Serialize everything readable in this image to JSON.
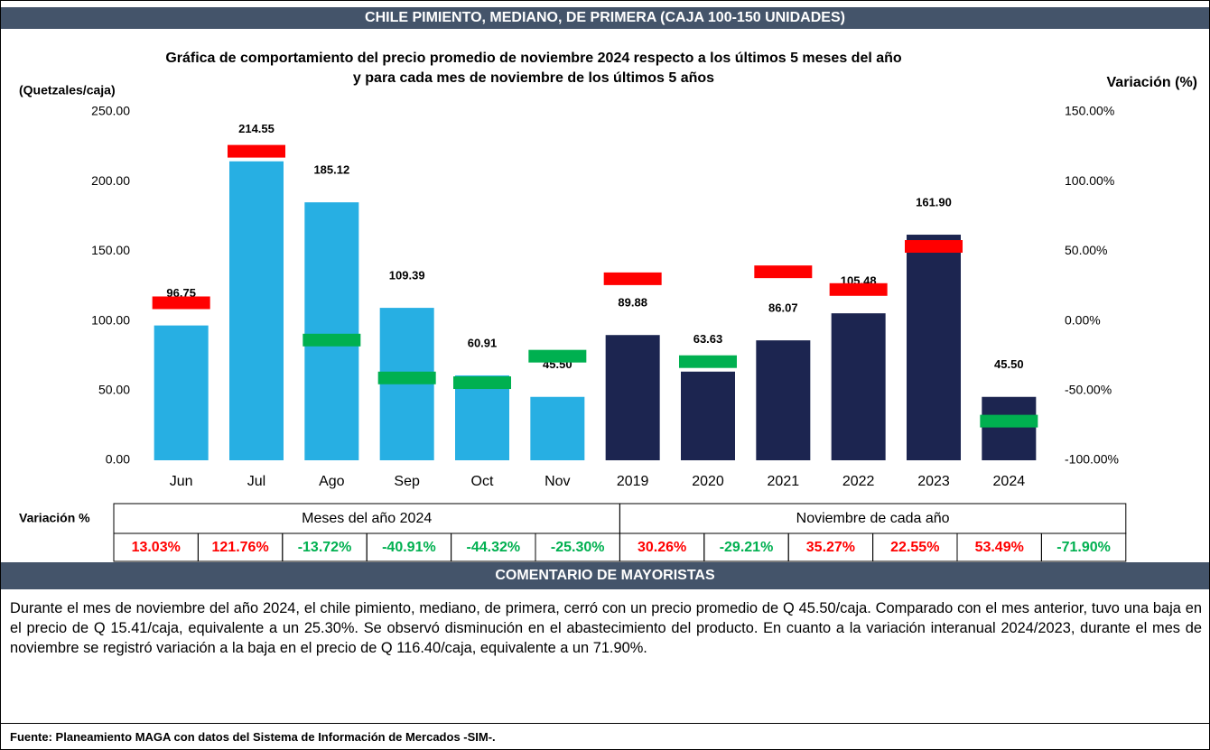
{
  "header": {
    "title": "CHILE PIMIENTO, MEDIANO, DE PRIMERA (CAJA 100-150 UNIDADES)"
  },
  "chart_data": {
    "type": "bar",
    "title": [
      "Gráfica de comportamiento del precio promedio de noviembre 2024 respecto a los últimos 5 meses del año",
      "y para cada mes de noviembre de los últimos 5 años"
    ],
    "ylabel": "(Quetzales/caja)",
    "y2label": "Variación (%)",
    "categories": [
      "Jun",
      "Jul",
      "Ago",
      "Sep",
      "Oct",
      "Nov",
      "2019",
      "2020",
      "2021",
      "2022",
      "2023",
      "2024"
    ],
    "values": [
      96.75,
      214.55,
      185.12,
      109.39,
      60.91,
      45.5,
      89.88,
      63.63,
      86.07,
      105.48,
      161.9,
      45.5
    ],
    "value_labels": [
      "96.75",
      "214.55",
      "185.12",
      "109.39",
      "60.91",
      "45.50",
      "89.88",
      "63.63",
      "86.07",
      "105.48",
      "161.90",
      "45.50"
    ],
    "colors": [
      "#27afe3",
      "#27afe3",
      "#27afe3",
      "#27afe3",
      "#27afe3",
      "#27afe3",
      "#1c2550",
      "#1c2550",
      "#1c2550",
      "#1c2550",
      "#1c2550",
      "#1c2550"
    ],
    "ylim": [
      0,
      250
    ],
    "yticks": [
      {
        "value": 0,
        "label": "0.00"
      },
      {
        "value": 50,
        "label": "50.00"
      },
      {
        "value": 100,
        "label": "100.00"
      },
      {
        "value": 150,
        "label": "150.00"
      },
      {
        "value": 200,
        "label": "200.00"
      },
      {
        "value": 250,
        "label": "250.00"
      }
    ],
    "y2lim": [
      -100,
      150
    ],
    "y2ticks": [
      {
        "value": -100,
        "label": "-100.00%"
      },
      {
        "value": -50,
        "label": "-50.00%"
      },
      {
        "value": 0,
        "label": "0.00%"
      },
      {
        "value": 50,
        "label": "50.00%"
      },
      {
        "value": 100,
        "label": "100.00%"
      },
      {
        "value": 150,
        "label": "150.00%"
      }
    ],
    "variation": {
      "axis": "y2",
      "label": "Variación %",
      "groups": [
        "Meses del año  2024",
        "Noviembre de cada año"
      ],
      "values": [
        13.03,
        121.76,
        -13.72,
        -40.91,
        -44.32,
        -25.3,
        30.26,
        -29.21,
        35.27,
        22.55,
        53.49,
        -71.9
      ],
      "value_labels": [
        "13.03%",
        "121.76%",
        "-13.72%",
        "-40.91%",
        "-44.32%",
        "-25.30%",
        "30.26%",
        "-29.21%",
        "35.27%",
        "22.55%",
        "53.49%",
        "-71.90%"
      ],
      "colors": [
        "#ff0000",
        "#ff0000",
        "#00b050",
        "#00b050",
        "#00b050",
        "#00b050",
        "#ff0000",
        "#00b050",
        "#ff0000",
        "#ff0000",
        "#ff0000",
        "#00b050"
      ]
    }
  },
  "comment": {
    "title": "COMENTARIO DE MAYORISTAS",
    "text": "Durante el mes de noviembre del año 2024, el chile pimiento, mediano, de primera, cerró con un precio promedio de Q 45.50/caja. Comparado con el mes anterior, tuvo una baja en el precio de Q 15.41/caja, equivalente a un 25.30%. Se observó disminución en el abastecimiento del producto. En cuanto a la variación interanual 2024/2023, durante el mes de noviembre se registró variación a la baja en el precio de Q 116.40/caja, equivalente a un 71.90%."
  },
  "source": "Fuente: Planeamiento MAGA con datos del  Sistema de Información de Mercados -SIM-."
}
